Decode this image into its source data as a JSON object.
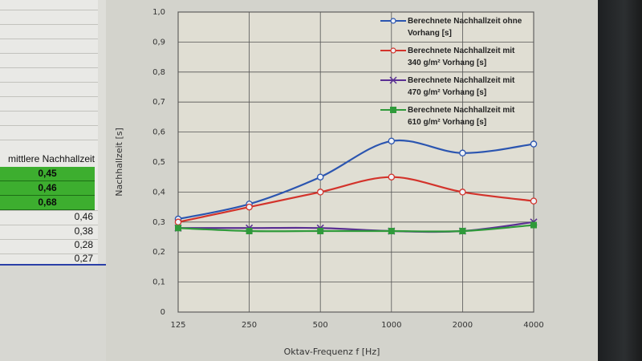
{
  "sheet": {
    "header": "mittlere Nachhallzeit",
    "green_cells": [
      "0,45",
      "0,46",
      "0,68"
    ],
    "plain_cells": [
      "0,46",
      "0,38",
      "0,28",
      "0,27"
    ]
  },
  "colors": {
    "blue": "#2b55b0",
    "red": "#d3332b",
    "purple": "#5a2f93",
    "green": "#2f9a3a",
    "highlight_green": "#3dae2f"
  },
  "chart_data": {
    "type": "line",
    "xlabel": "Oktav-Frequenz f [Hz]",
    "ylabel": "Nachhallzeit [s]",
    "categories": [
      "125",
      "250",
      "500",
      "1000",
      "2000",
      "4000"
    ],
    "ylim": [
      0,
      1.0
    ],
    "yticks": [
      "0",
      "0,1",
      "0,2",
      "0,3",
      "0,4",
      "0,5",
      "0,6",
      "0,7",
      "0,8",
      "0,9",
      "1,0"
    ],
    "grid": true,
    "legend_position": "top-right",
    "series": [
      {
        "name": "Berechnete Nachhallzeit ohne Vorhang [s]",
        "legend_lines": [
          "Berechnete Nachhallzeit ohne",
          "Vorhang [s]"
        ],
        "color": "#2b55b0",
        "marker": "circle",
        "values": [
          0.31,
          0.36,
          0.45,
          0.57,
          0.53,
          0.56
        ]
      },
      {
        "name": "Berechnete Nachhallzeit mit 340 g/m² Vorhang [s]",
        "legend_lines": [
          "Berechnete Nachhallzeit mit",
          "340 g/m² Vorhang [s]"
        ],
        "color": "#d3332b",
        "marker": "circle",
        "values": [
          0.3,
          0.35,
          0.4,
          0.45,
          0.4,
          0.37
        ]
      },
      {
        "name": "Berechnete Nachhallzeit mit 470 g/m² Vorhang [s]",
        "legend_lines": [
          "Berechnete Nachhallzeit mit",
          "470 g/m² Vorhang [s]"
        ],
        "color": "#5a2f93",
        "marker": "cross",
        "values": [
          0.28,
          0.28,
          0.28,
          0.27,
          0.27,
          0.3
        ]
      },
      {
        "name": "Berechnete Nachhallzeit mit 610 g/m² Vorhang [s]",
        "legend_lines": [
          "Berechnete Nachhallzeit mit",
          "610 g/m² Vorhang [s]"
        ],
        "color": "#2f9a3a",
        "marker": "square",
        "values": [
          0.28,
          0.27,
          0.27,
          0.27,
          0.27,
          0.29
        ]
      }
    ]
  }
}
